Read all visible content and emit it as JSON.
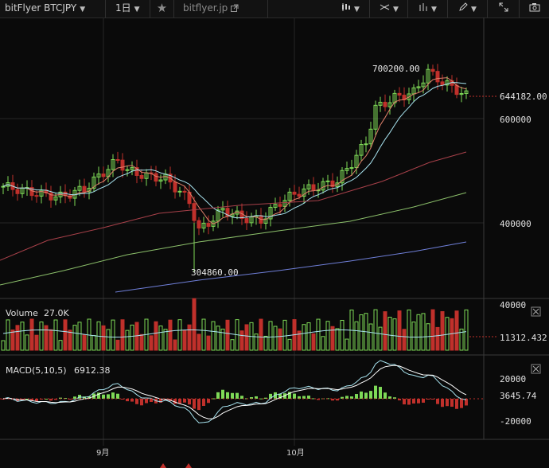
{
  "toolbar": {
    "symbol": "bitFlyer BTCJPY",
    "interval": "1日",
    "site": "bitflyer.jp"
  },
  "price_axis": {
    "ticks": [
      "600000",
      "400000"
    ],
    "current_price": "644182.00",
    "high_label": "700200.00",
    "low_label": "304860.00"
  },
  "volume_panel": {
    "label": "Volume",
    "value": "27.0K",
    "axis_top": "40000",
    "current": "11312.432"
  },
  "macd_panel": {
    "label": "MACD(5,10,5)",
    "value": "6912.38",
    "axis_top": "20000",
    "axis_bottom": "-20000",
    "current": "3645.74"
  },
  "time_axis": {
    "labels": [
      "9月",
      "10月"
    ]
  },
  "colors": {
    "up": "#7ed957",
    "down": "#c0302b",
    "ma5": "#e0816b",
    "ma10": "#a8e4f0",
    "ma25": "#a8414a",
    "ma50": "#8bbf6a",
    "ma100": "#6f7fd8"
  }
}
